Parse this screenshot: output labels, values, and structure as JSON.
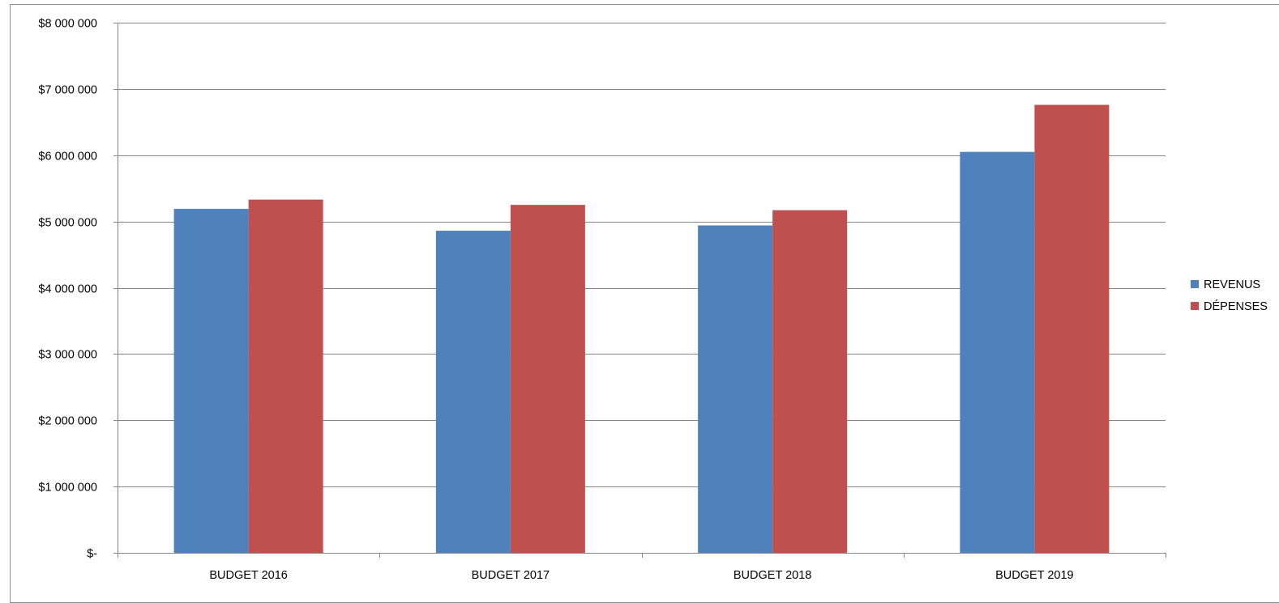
{
  "chart_data": {
    "type": "bar",
    "title": "",
    "xlabel": "",
    "ylabel": "",
    "categories": [
      "BUDGET 2016",
      "BUDGET 2017",
      "BUDGET 2018",
      "BUDGET 2019"
    ],
    "series": [
      {
        "name": "REVENUS",
        "color": "#4F81BD",
        "values": [
          5190000,
          4860000,
          4940000,
          6050000
        ]
      },
      {
        "name": "DÉPENSES",
        "color": "#C0504D",
        "values": [
          5330000,
          5250000,
          5170000,
          6760000
        ]
      }
    ],
    "ylim": [
      0,
      8000000
    ],
    "yticks": [
      0,
      1000000,
      2000000,
      3000000,
      4000000,
      5000000,
      6000000,
      7000000,
      8000000
    ],
    "ytick_labels": [
      "$-",
      "$1 000 000",
      "$2 000 000",
      "$3 000 000",
      "$4 000 000",
      "$5 000 000",
      "$6 000 000",
      "$7 000 000",
      "$8 000 000"
    ],
    "grid": true,
    "legend_position": "right"
  }
}
